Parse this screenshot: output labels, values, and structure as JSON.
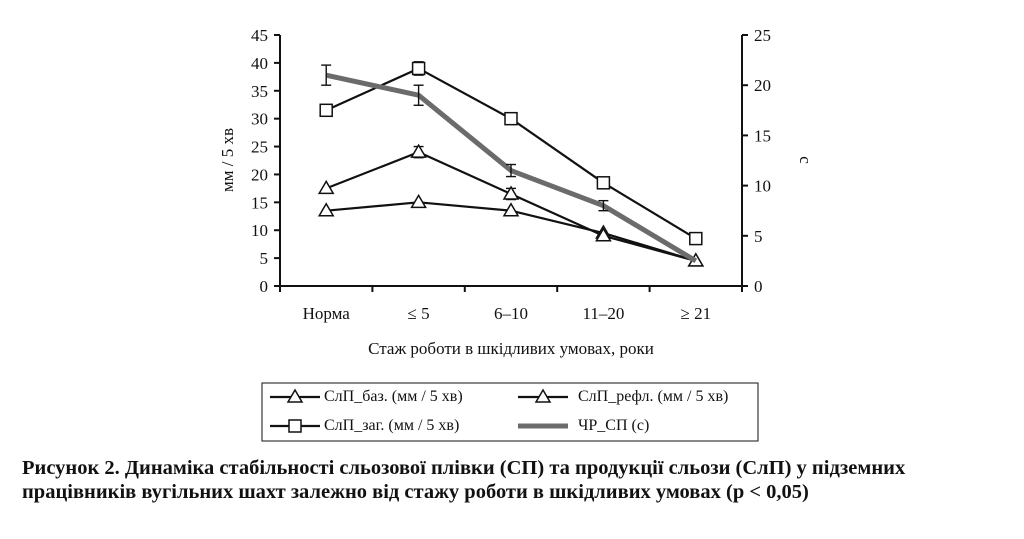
{
  "chart_data": {
    "type": "line",
    "categories": [
      "Норма",
      "≤ 5",
      "6–10",
      "11–20",
      "≥ 21"
    ],
    "xlabel": "Стаж роботи в шкідливих умовах, роки",
    "ylabel_left": "мм / 5 хв",
    "ylabel_right": "с",
    "ylim_left": [
      0,
      45
    ],
    "ylim_right": [
      0,
      25
    ],
    "yticks_left": [
      "0",
      "5",
      "10",
      "15",
      "20",
      "25",
      "30",
      "35",
      "40",
      "45"
    ],
    "yticks_right": [
      "0",
      "5",
      "10",
      "15",
      "20",
      "25"
    ],
    "grid": false,
    "legend_position": "bottom",
    "series": [
      {
        "name": "СлП_баз.  (мм / 5 хв)",
        "axis": "left",
        "marker": "triangle",
        "values": [
          13.5,
          15,
          13.5,
          9.5,
          4.5
        ]
      },
      {
        "name": "СлП_рефл. (мм / 5 хв)",
        "axis": "left",
        "marker": "triangle",
        "values": [
          17.5,
          24,
          16.5,
          9,
          4.5
        ],
        "errors": [
          0,
          1,
          1,
          0,
          0
        ]
      },
      {
        "name": "СлП_заг. (мм / 5 хв)",
        "axis": "left",
        "marker": "square",
        "values": [
          31.5,
          39,
          30,
          18.5,
          8.5
        ],
        "errors": [
          1,
          1.2,
          1,
          0,
          0
        ]
      },
      {
        "name": "ЧР_СП (с)",
        "axis": "right",
        "marker": "none",
        "values": [
          21,
          19,
          11.5,
          8,
          2.5
        ],
        "errors": [
          1,
          1,
          0.6,
          0.5,
          0
        ]
      }
    ]
  },
  "caption": "Рисунок 2. Динаміка стабільності сльозової плівки (СП) та продукції сльози (СлП) у підземних працівників вугільних шахт залежно від стажу роботи в шкідливих умовах (р < 0,05)"
}
